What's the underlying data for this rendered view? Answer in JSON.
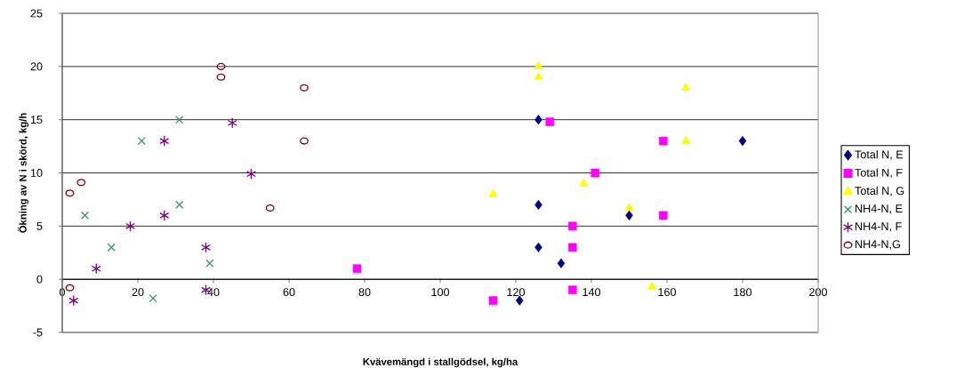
{
  "chart_data": {
    "type": "scatter",
    "xlabel": "Kvävemängd i stallgödsel, kg/ha",
    "ylabel": "Ökning av N i skörd, kg/h",
    "xlim": [
      0,
      200
    ],
    "ylim": [
      -5,
      25
    ],
    "xticks": [
      0,
      20,
      40,
      60,
      80,
      100,
      120,
      140,
      160,
      180,
      200
    ],
    "yticks": [
      -5,
      0,
      5,
      10,
      15,
      20,
      25
    ],
    "grid": "y",
    "legend": "right",
    "series": [
      {
        "name": "Total N, E",
        "color": "#000080",
        "marker": "diamond",
        "x": [
          126,
          126,
          126,
          132,
          121,
          150,
          180
        ],
        "values": [
          15,
          7,
          3,
          1.5,
          -2,
          6,
          13
        ]
      },
      {
        "name": "Total N, F",
        "color": "#ff00ff",
        "marker": "square",
        "x": [
          78,
          114,
          129,
          135,
          135,
          135,
          141,
          159,
          159
        ],
        "values": [
          1,
          -2,
          14.8,
          5,
          3,
          -1,
          10,
          13,
          6
        ]
      },
      {
        "name": "Total N, G",
        "color": "#ffff00",
        "marker": "triangle",
        "x": [
          114,
          126,
          126,
          138,
          150,
          156,
          165,
          165
        ],
        "values": [
          8,
          20,
          19,
          9,
          6.7,
          -0.7,
          18,
          13
        ]
      },
      {
        "name": "NH4-N, E",
        "color": "#339966",
        "marker": "cross",
        "x": [
          6,
          13,
          21,
          24,
          31,
          31,
          39
        ],
        "values": [
          6,
          3,
          13,
          -1.8,
          15,
          7,
          1.5
        ]
      },
      {
        "name": "NH4-N, F",
        "color": "#800080",
        "marker": "cross",
        "x": [
          3,
          9,
          18,
          27,
          27,
          38,
          38,
          45,
          50
        ],
        "values": [
          -2,
          1,
          5,
          13,
          6,
          3,
          -1,
          14.7,
          9.9
        ]
      },
      {
        "name": "NH4-N,G",
        "color": "#800000",
        "marker": "circle",
        "x": [
          2,
          2,
          5,
          42,
          42,
          55,
          64,
          64
        ],
        "values": [
          -0.8,
          8.1,
          9.1,
          20,
          19,
          6.7,
          18,
          13
        ]
      }
    ]
  }
}
